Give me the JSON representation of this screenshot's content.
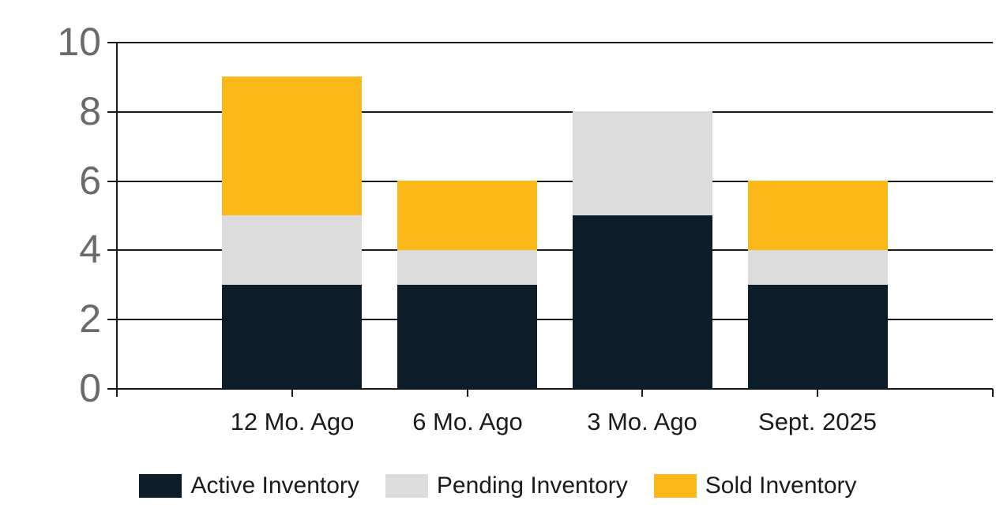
{
  "chart_data": {
    "type": "bar",
    "stacked": true,
    "title": "",
    "xlabel": "",
    "ylabel": "",
    "categories": [
      "12 Mo. Ago",
      "6 Mo. Ago",
      "3 Mo. Ago",
      "Sept. 2025"
    ],
    "series": [
      {
        "name": "Active Inventory",
        "color": "#0b1d29",
        "values": [
          3,
          3,
          5,
          3
        ]
      },
      {
        "name": "Pending Inventory",
        "color": "#dcdcdc",
        "values": [
          2,
          1,
          3,
          1
        ]
      },
      {
        "name": "Sold Inventory",
        "color": "#fab819",
        "values": [
          4,
          2,
          0,
          2
        ]
      }
    ],
    "stack_totals": [
      9,
      6,
      8,
      6
    ],
    "ylim": [
      0,
      10
    ],
    "yticks": [
      0,
      2,
      4,
      6,
      8,
      10
    ],
    "grid": true,
    "legend_position": "bottom",
    "colors": {
      "y_tick_label": "#6a6a6a",
      "x_tick_label": "#1b1b1b",
      "legend_text": "#1b1b1b",
      "gridline": "#1a1a1a",
      "background": "#ffffff"
    }
  }
}
